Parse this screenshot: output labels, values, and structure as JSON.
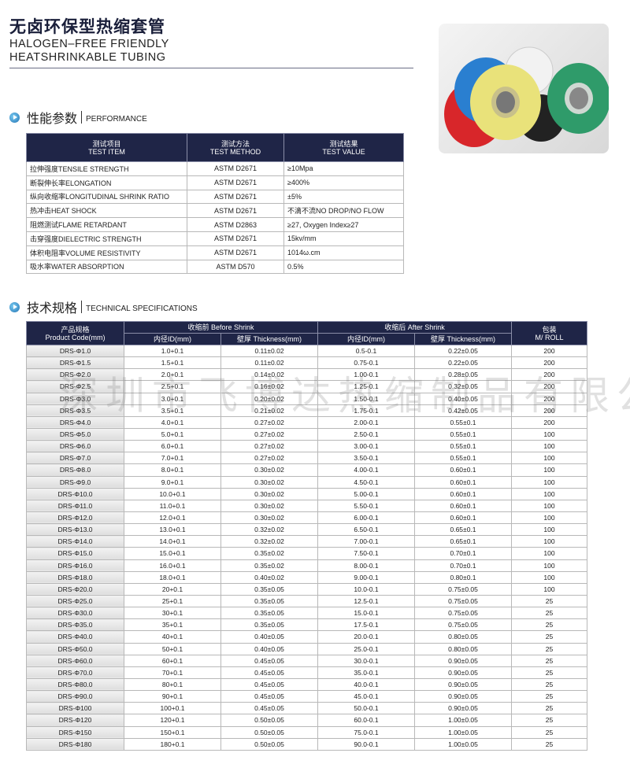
{
  "header": {
    "title_cn": "无卤环保型热缩套管",
    "title_en_1": "HALOGEN–FREE FRIENDLY",
    "title_en_2": "HEATSHRINKABLE TUBING"
  },
  "photo": {
    "roll_colors": [
      "#d8262a",
      "#2a7fd0",
      "#e9e27a",
      "#2f9b6a",
      "#eeeeee"
    ]
  },
  "performance": {
    "heading_cn": "性能参数",
    "heading_en": "PERFORMANCE",
    "columns": [
      [
        "测试项目",
        "TEST ITEM"
      ],
      [
        "测试方法",
        "TEST METHOD"
      ],
      [
        "测试结果",
        "TEST VALUE"
      ]
    ],
    "rows": [
      [
        "拉伸强度TENSILE STRENGTH",
        "ASTM D2671",
        "≥10Mpa"
      ],
      [
        "断裂伸长率ELONGATION",
        "ASTM D2671",
        "≥400%"
      ],
      [
        "纵向收缩率LONGITUDINAL SHRINK RATIO",
        "ASTM D2671",
        "±5%"
      ],
      [
        "热冲击HEAT SHOCK",
        "ASTM D2671",
        "不滴不流NO DROP/NO FLOW"
      ],
      [
        "阻燃测试FLAME RETARDANT",
        "ASTM D2863",
        "≥27, Oxygen Index≥27"
      ],
      [
        "击穿强度DIELECTRIC STRENGTH",
        "ASTM D2671",
        "15kv/mm"
      ],
      [
        "体积电阻率VOLUME RESISTIVITY",
        "ASTM D2671",
        "1014ω.cm"
      ],
      [
        "吸水率WATER ABSORPTION",
        "ASTM D570",
        "0.5%"
      ]
    ]
  },
  "specs": {
    "heading_cn": "技术规格",
    "heading_en": "TECHNICAL SPECIFICATIONS",
    "col_code": [
      "产品规格",
      "Product Code(mm)"
    ],
    "group_before": "收缩前 Before Shrink",
    "group_after": "收缩后 After Shrink",
    "col_pack": [
      "包装",
      "M/ ROLL"
    ],
    "sub_id": "内径ID(mm)",
    "sub_thk": "壁厚 Thickness(mm)",
    "rows": [
      [
        "DRS-Φ1.0",
        "1.0+0.1",
        "0.11±0.02",
        "0.5-0.1",
        "0.22±0.05",
        "200"
      ],
      [
        "DRS-Φ1.5",
        "1.5+0.1",
        "0.11±0.02",
        "0.75-0.1",
        "0.22±0.05",
        "200"
      ],
      [
        "DRS-Φ2.0",
        "2.0+0.1",
        "0.14±0.02",
        "1.00-0.1",
        "0.28±0.05",
        "200"
      ],
      [
        "DRS-Φ2.5",
        "2.5+0.1",
        "0.16±0.02",
        "1.25-0.1",
        "0.32±0.05",
        "200"
      ],
      [
        "DRS-Φ3.0",
        "3.0+0.1",
        "0.20±0.02",
        "1.50-0.1",
        "0.40±0.05",
        "200"
      ],
      [
        "DRS-Φ3.5",
        "3.5+0.1",
        "0.21±0.02",
        "1.75-0.1",
        "0.42±0.05",
        "200"
      ],
      [
        "DRS-Φ4.0",
        "4.0+0.1",
        "0.27±0.02",
        "2.00-0.1",
        "0.55±0.1",
        "200"
      ],
      [
        "DRS-Φ5.0",
        "5.0+0.1",
        "0.27±0.02",
        "2.50-0.1",
        "0.55±0.1",
        "100"
      ],
      [
        "DRS-Φ6.0",
        "6.0+0.1",
        "0.27±0.02",
        "3.00-0.1",
        "0.55±0.1",
        "100"
      ],
      [
        "DRS-Φ7.0",
        "7.0+0.1",
        "0.27±0.02",
        "3.50-0.1",
        "0.55±0.1",
        "100"
      ],
      [
        "DRS-Φ8.0",
        "8.0+0.1",
        "0.30±0.02",
        "4.00-0.1",
        "0.60±0.1",
        "100"
      ],
      [
        "DRS-Φ9.0",
        "9.0+0.1",
        "0.30±0.02",
        "4.50-0.1",
        "0.60±0.1",
        "100"
      ],
      [
        "DRS-Φ10.0",
        "10.0+0.1",
        "0.30±0.02",
        "5.00-0.1",
        "0.60±0.1",
        "100"
      ],
      [
        "DRS-Φ11.0",
        "11.0+0.1",
        "0.30±0.02",
        "5.50-0.1",
        "0.60±0.1",
        "100"
      ],
      [
        "DRS-Φ12.0",
        "12.0+0.1",
        "0.30±0.02",
        "6.00-0.1",
        "0.60±0.1",
        "100"
      ],
      [
        "DRS-Φ13.0",
        "13.0+0.1",
        "0.32±0.02",
        "6.50-0.1",
        "0.65±0.1",
        "100"
      ],
      [
        "DRS-Φ14.0",
        "14.0+0.1",
        "0.32±0.02",
        "7.00-0.1",
        "0.65±0.1",
        "100"
      ],
      [
        "DRS-Φ15.0",
        "15.0+0.1",
        "0.35±0.02",
        "7.50-0.1",
        "0.70±0.1",
        "100"
      ],
      [
        "DRS-Φ16.0",
        "16.0+0.1",
        "0.35±0.02",
        "8.00-0.1",
        "0.70±0.1",
        "100"
      ],
      [
        "DRS-Φ18.0",
        "18.0+0.1",
        "0.40±0.02",
        "9.00-0.1",
        "0.80±0.1",
        "100"
      ],
      [
        "DRS-Φ20.0",
        "20+0.1",
        "0.35±0.05",
        "10.0-0.1",
        "0.75±0.05",
        "100"
      ],
      [
        "DRS-Φ25.0",
        "25+0.1",
        "0.35±0.05",
        "12.5-0.1",
        "0.75±0.05",
        "25"
      ],
      [
        "DRS-Φ30.0",
        "30+0.1",
        "0.35±0.05",
        "15.0-0.1",
        "0.75±0.05",
        "25"
      ],
      [
        "DRS-Φ35.0",
        "35+0.1",
        "0.35±0.05",
        "17.5-0.1",
        "0.75±0.05",
        "25"
      ],
      [
        "DRS-Φ40.0",
        "40+0.1",
        "0.40±0.05",
        "20.0-0.1",
        "0.80±0.05",
        "25"
      ],
      [
        "DRS-Φ50.0",
        "50+0.1",
        "0.40±0.05",
        "25.0-0.1",
        "0.80±0.05",
        "25"
      ],
      [
        "DRS-Φ60.0",
        "60+0.1",
        "0.45±0.05",
        "30.0-0.1",
        "0.90±0.05",
        "25"
      ],
      [
        "DRS-Φ70.0",
        "70+0.1",
        "0.45±0.05",
        "35.0-0.1",
        "0.90±0.05",
        "25"
      ],
      [
        "DRS-Φ80.0",
        "80+0.1",
        "0.45±0.05",
        "40.0-0.1",
        "0.90±0.05",
        "25"
      ],
      [
        "DRS-Φ90.0",
        "90+0.1",
        "0.45±0.05",
        "45.0-0.1",
        "0.90±0.05",
        "25"
      ],
      [
        "DRS-Φ100",
        "100+0.1",
        "0.45±0.05",
        "50.0-0.1",
        "0.90±0.05",
        "25"
      ],
      [
        "DRS-Φ120",
        "120+0.1",
        "0.50±0.05",
        "60.0-0.1",
        "1.00±0.05",
        "25"
      ],
      [
        "DRS-Φ150",
        "150+0.1",
        "0.50±0.05",
        "75.0-0.1",
        "1.00±0.05",
        "25"
      ],
      [
        "DRS-Φ180",
        "180+0.1",
        "0.50±0.05",
        "90.0-0.1",
        "1.00±0.05",
        "25"
      ]
    ]
  },
  "watermark": "深圳市飞博达热缩制品有限公司"
}
